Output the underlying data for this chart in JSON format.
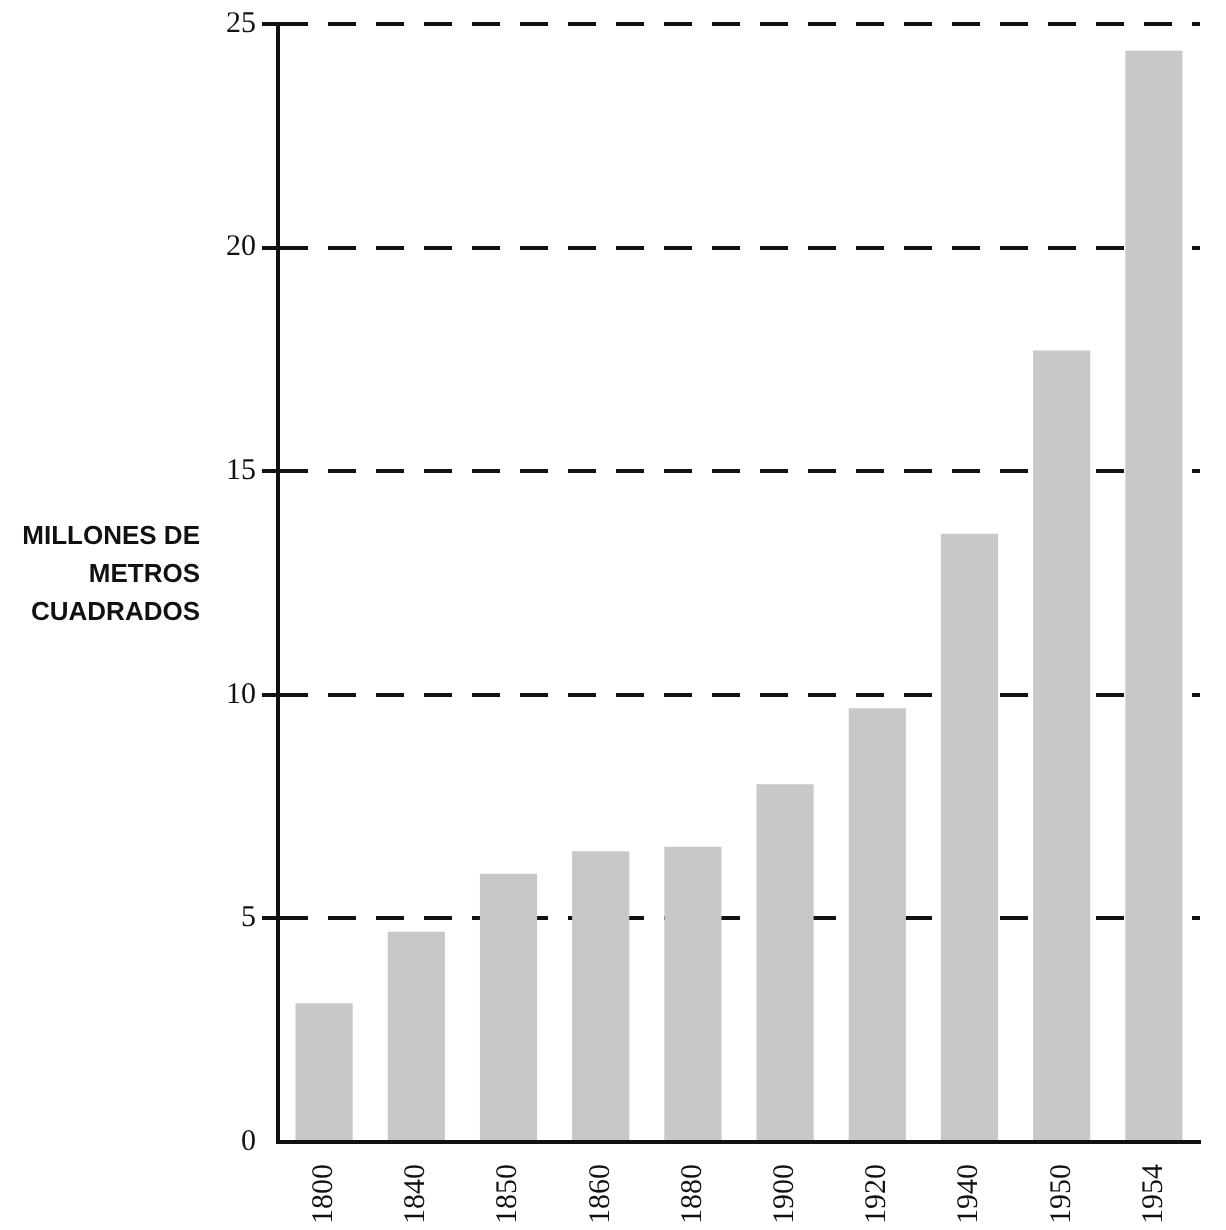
{
  "chart_data": {
    "type": "bar",
    "ylabel": "MILLONES DE METROS CUADRADOS",
    "categories": [
      "1800",
      "1840",
      "1850",
      "1860",
      "1880",
      "1900",
      "1920",
      "1940",
      "1950",
      "1954"
    ],
    "values": [
      3.1,
      4.7,
      6.0,
      6.5,
      6.6,
      8.0,
      9.7,
      13.6,
      17.7,
      24.4
    ],
    "color": "#c8c8c8",
    "ylim": [
      0,
      25
    ],
    "yticks": [
      0,
      5,
      10,
      15,
      20,
      25
    ],
    "grid": "y",
    "line_style": "dashed"
  }
}
